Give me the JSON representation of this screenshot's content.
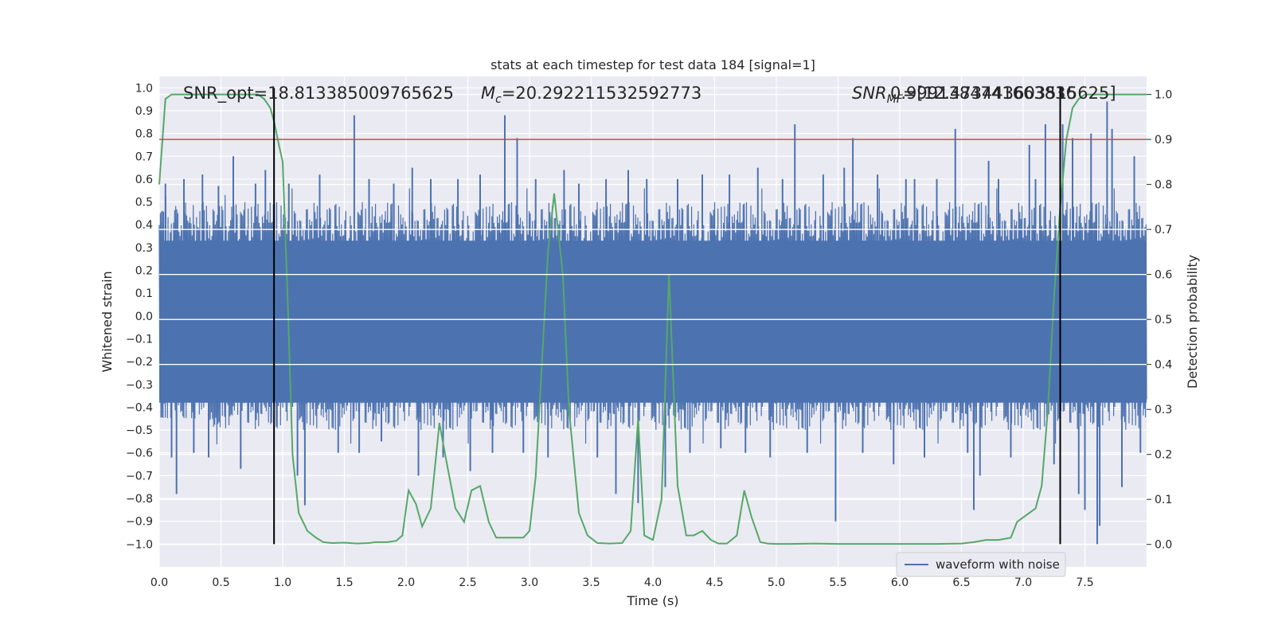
{
  "chart_data": {
    "type": "line",
    "title": "stats at each timestep for test data 184 [signal=1]",
    "xlabel": "Time (s)",
    "ylabel": "Whitened strain",
    "y2label": "Detection probability",
    "xlim": [
      0.0,
      8.0
    ],
    "ylim": [
      -1.1,
      1.05
    ],
    "y2lim": [
      -0.05,
      1.04
    ],
    "xticks": [
      "0.0",
      "0.5",
      "1.0",
      "1.5",
      "2.0",
      "2.5",
      "3.0",
      "3.5",
      "4.0",
      "4.5",
      "5.0",
      "5.5",
      "6.0",
      "6.5",
      "7.0",
      "7.5"
    ],
    "yticks": [
      "1.0",
      "0.9",
      "0.8",
      "0.7",
      "0.6",
      "0.5",
      "0.4",
      "0.3",
      "0.2",
      "0.1",
      "0.0",
      "−0.1",
      "−0.2",
      "−0.3",
      "−0.4",
      "−0.5",
      "−0.6",
      "−0.7",
      "−0.8",
      "−0.9",
      "−1.0"
    ],
    "y2ticks": [
      "1.0",
      "0.9",
      "0.8",
      "0.7",
      "0.6",
      "0.5",
      "0.4",
      "0.3",
      "0.2",
      "0.1",
      "0.0"
    ],
    "grid": true,
    "legend_placement": "lower-right",
    "annotations": {
      "snr_opt": "SNR_opt=18.813385009765625",
      "mc": "=20.292211532592773",
      "mc_symbol": "M",
      "mc_subscript": "c",
      "overlap_prefix": "SNR",
      "overlap_sub": "MF",
      "overlap_rest": "=[12.473443603515625]",
      "overlap_number": "0.9991384741663836"
    },
    "vlines": [
      0.93,
      7.3
    ],
    "threshold": 0.9,
    "series": [
      {
        "name": "waveform with noise",
        "color": "#4c72b0",
        "kind": "noise",
        "envelope": 0.5,
        "spikes": [
          {
            "x": 0.05,
            "y": 0.58
          },
          {
            "x": 0.1,
            "y": -0.62
          },
          {
            "x": 0.14,
            "y": -0.78
          },
          {
            "x": 0.2,
            "y": 0.6
          },
          {
            "x": 0.28,
            "y": -0.6
          },
          {
            "x": 0.35,
            "y": 0.62
          },
          {
            "x": 0.4,
            "y": -0.62
          },
          {
            "x": 0.48,
            "y": 0.57
          },
          {
            "x": 0.6,
            "y": 0.7
          },
          {
            "x": 0.66,
            "y": -0.67
          },
          {
            "x": 0.78,
            "y": 0.58
          },
          {
            "x": 0.86,
            "y": 0.64
          },
          {
            "x": 1.05,
            "y": 0.58
          },
          {
            "x": 1.12,
            "y": -0.7
          },
          {
            "x": 1.18,
            "y": -0.83
          },
          {
            "x": 1.3,
            "y": 0.62
          },
          {
            "x": 1.45,
            "y": -0.6
          },
          {
            "x": 1.58,
            "y": 0.88
          },
          {
            "x": 1.62,
            "y": -0.6
          },
          {
            "x": 1.7,
            "y": 0.6
          },
          {
            "x": 1.8,
            "y": -0.55
          },
          {
            "x": 1.9,
            "y": 0.58
          },
          {
            "x": 2.05,
            "y": 0.65
          },
          {
            "x": 2.1,
            "y": -0.7
          },
          {
            "x": 2.2,
            "y": 0.6
          },
          {
            "x": 2.3,
            "y": -0.62
          },
          {
            "x": 2.42,
            "y": 0.6
          },
          {
            "x": 2.52,
            "y": -0.68
          },
          {
            "x": 2.6,
            "y": 0.62
          },
          {
            "x": 2.7,
            "y": -0.6
          },
          {
            "x": 2.8,
            "y": 0.88
          },
          {
            "x": 2.9,
            "y": 0.78
          },
          {
            "x": 2.95,
            "y": -0.6
          },
          {
            "x": 3.05,
            "y": 0.6
          },
          {
            "x": 3.15,
            "y": -0.62
          },
          {
            "x": 3.28,
            "y": 0.64
          },
          {
            "x": 3.4,
            "y": 0.58
          },
          {
            "x": 3.55,
            "y": -0.62
          },
          {
            "x": 3.62,
            "y": 0.6
          },
          {
            "x": 3.7,
            "y": -0.78
          },
          {
            "x": 3.8,
            "y": 0.64
          },
          {
            "x": 3.88,
            "y": -0.82
          },
          {
            "x": 3.95,
            "y": 0.6
          },
          {
            "x": 4.1,
            "y": -0.75
          },
          {
            "x": 4.2,
            "y": 0.6
          },
          {
            "x": 4.3,
            "y": -0.6
          },
          {
            "x": 4.4,
            "y": 0.62
          },
          {
            "x": 4.55,
            "y": -0.58
          },
          {
            "x": 4.62,
            "y": 0.62
          },
          {
            "x": 4.75,
            "y": -0.6
          },
          {
            "x": 4.85,
            "y": 0.65
          },
          {
            "x": 4.95,
            "y": -0.62
          },
          {
            "x": 5.05,
            "y": 0.6
          },
          {
            "x": 5.15,
            "y": 0.84
          },
          {
            "x": 5.25,
            "y": -0.6
          },
          {
            "x": 5.38,
            "y": 0.62
          },
          {
            "x": 5.48,
            "y": -0.9
          },
          {
            "x": 5.55,
            "y": 0.65
          },
          {
            "x": 5.62,
            "y": 0.78
          },
          {
            "x": 5.7,
            "y": -0.6
          },
          {
            "x": 5.82,
            "y": 0.62
          },
          {
            "x": 5.95,
            "y": -0.65
          },
          {
            "x": 6.05,
            "y": 0.6
          },
          {
            "x": 6.12,
            "y": 0.6
          },
          {
            "x": 6.2,
            "y": -0.62
          },
          {
            "x": 6.3,
            "y": 0.6
          },
          {
            "x": 6.45,
            "y": 0.82
          },
          {
            "x": 6.55,
            "y": -0.6
          },
          {
            "x": 6.6,
            "y": -0.85
          },
          {
            "x": 6.65,
            "y": -0.7
          },
          {
            "x": 6.72,
            "y": 0.68
          },
          {
            "x": 6.8,
            "y": 0.6
          },
          {
            "x": 6.9,
            "y": -0.62
          },
          {
            "x": 7.05,
            "y": 0.75
          },
          {
            "x": 7.1,
            "y": 0.6
          },
          {
            "x": 7.18,
            "y": 0.84
          },
          {
            "x": 7.25,
            "y": -0.65
          },
          {
            "x": 7.32,
            "y": 0.84
          },
          {
            "x": 7.4,
            "y": 0.78
          },
          {
            "x": 7.45,
            "y": -0.78
          },
          {
            "x": 7.5,
            "y": -0.85
          },
          {
            "x": 7.55,
            "y": 0.8
          },
          {
            "x": 7.6,
            "y": -1.0
          },
          {
            "x": 7.62,
            "y": -0.92
          },
          {
            "x": 7.68,
            "y": 0.94
          },
          {
            "x": 7.72,
            "y": 0.82
          },
          {
            "x": 7.8,
            "y": -0.75
          },
          {
            "x": 7.9,
            "y": 0.7
          },
          {
            "x": 7.95,
            "y": -0.6
          }
        ]
      },
      {
        "name": "",
        "color": "#55a868",
        "axis": "right",
        "x": [
          0.0,
          0.05,
          0.1,
          0.2,
          0.3,
          0.4,
          0.5,
          0.6,
          0.7,
          0.8,
          0.85,
          0.9,
          0.93,
          0.96,
          1.0,
          1.04,
          1.08,
          1.13,
          1.2,
          1.27,
          1.33,
          1.4,
          1.5,
          1.6,
          1.7,
          1.75,
          1.85,
          1.92,
          1.97,
          2.02,
          2.08,
          2.13,
          2.2,
          2.27,
          2.33,
          2.4,
          2.47,
          2.53,
          2.6,
          2.67,
          2.73,
          2.8,
          2.88,
          2.95,
          3.0,
          3.05,
          3.1,
          3.15,
          3.2,
          3.27,
          3.32,
          3.4,
          3.47,
          3.55,
          3.65,
          3.75,
          3.82,
          3.88,
          3.93,
          4.0,
          4.07,
          4.13,
          4.2,
          4.27,
          4.33,
          4.4,
          4.47,
          4.53,
          4.6,
          4.68,
          4.74,
          4.8,
          4.87,
          4.93,
          5.0,
          5.1,
          5.3,
          5.5,
          5.7,
          5.9,
          6.1,
          6.3,
          6.5,
          6.6,
          6.7,
          6.8,
          6.9,
          6.95,
          7.0,
          7.05,
          7.1,
          7.15,
          7.2,
          7.25,
          7.3,
          7.35,
          7.4,
          7.45,
          7.5,
          7.55,
          7.6,
          7.7,
          7.8,
          7.9,
          8.0
        ],
        "y": [
          0.8,
          0.99,
          1.0,
          1.0,
          1.0,
          1.0,
          1.0,
          1.0,
          1.0,
          1.0,
          0.99,
          0.97,
          0.94,
          0.9,
          0.85,
          0.55,
          0.2,
          0.07,
          0.03,
          0.015,
          0.005,
          0.003,
          0.004,
          0.002,
          0.003,
          0.005,
          0.005,
          0.008,
          0.02,
          0.12,
          0.09,
          0.04,
          0.08,
          0.27,
          0.18,
          0.08,
          0.05,
          0.12,
          0.13,
          0.05,
          0.015,
          0.015,
          0.015,
          0.015,
          0.03,
          0.15,
          0.4,
          0.65,
          0.78,
          0.6,
          0.3,
          0.07,
          0.02,
          0.003,
          0.002,
          0.003,
          0.03,
          0.28,
          0.02,
          0.01,
          0.1,
          0.6,
          0.13,
          0.02,
          0.02,
          0.03,
          0.01,
          0.002,
          0.002,
          0.02,
          0.12,
          0.06,
          0.005,
          0.002,
          0.001,
          0.001,
          0.002,
          0.001,
          0.001,
          0.001,
          0.001,
          0.001,
          0.002,
          0.005,
          0.01,
          0.01,
          0.015,
          0.05,
          0.06,
          0.07,
          0.08,
          0.13,
          0.3,
          0.55,
          0.75,
          0.9,
          0.97,
          0.99,
          1.0,
          1.0,
          1.0,
          1.0,
          1.0,
          1.0,
          1.0
        ]
      }
    ]
  }
}
